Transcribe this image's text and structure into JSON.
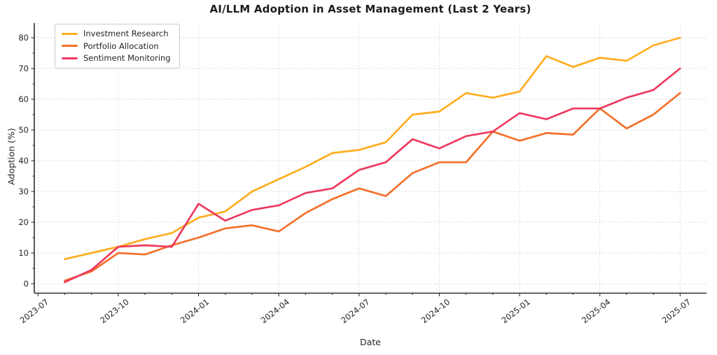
{
  "chart": {
    "title": "AI/LLM Adoption in Asset Management (Last 2 Years)",
    "xlabel": "Date",
    "ylabel": "Adoption (%)"
  },
  "chart_data": {
    "type": "line",
    "title": "AI/LLM Adoption in Asset Management (Last 2 Years)",
    "xlabel": "Date",
    "ylabel": "Adoption (%)",
    "ylim": [
      0,
      80
    ],
    "yticks": [
      0,
      10,
      20,
      30,
      40,
      50,
      60,
      70,
      80
    ],
    "xticks": [
      "2023-07",
      "2023-10",
      "2024-01",
      "2024-04",
      "2024-07",
      "2024-10",
      "2025-01",
      "2025-04",
      "2025-07"
    ],
    "grid": true,
    "legend_position": "upper left",
    "x": [
      "2023-08",
      "2023-09",
      "2023-10",
      "2023-11",
      "2023-12",
      "2024-01",
      "2024-02",
      "2024-03",
      "2024-04",
      "2024-05",
      "2024-06",
      "2024-07",
      "2024-08",
      "2024-09",
      "2024-10",
      "2024-11",
      "2024-12",
      "2025-01",
      "2025-02",
      "2025-03",
      "2025-04",
      "2025-05",
      "2025-06",
      "2025-07"
    ],
    "series": [
      {
        "name": "Investment Research",
        "color": "#FFAD1F",
        "values": [
          8,
          10,
          12,
          14.5,
          16.5,
          21.5,
          23.5,
          30,
          34,
          38,
          42.5,
          43.5,
          46,
          55,
          56,
          62,
          60.5,
          62.5,
          74,
          70.5,
          73.5,
          72.5,
          77.5,
          80
        ]
      },
      {
        "name": "Portfolio Allocation",
        "color": "#F4702A",
        "values": [
          1,
          4,
          10,
          9.5,
          12.5,
          15,
          18,
          19,
          17,
          23,
          27.5,
          31,
          28.5,
          36,
          39.5,
          39.5,
          49.5,
          46.5,
          49,
          48.5,
          57,
          50.5,
          55,
          62
        ]
      },
      {
        "name": "Sentiment Monitoring",
        "color": "#EE3A5F",
        "values": [
          0.5,
          4.5,
          12,
          12.5,
          12,
          26,
          20.5,
          24,
          25.5,
          29.5,
          31,
          37,
          39.5,
          47,
          44,
          48,
          49.5,
          55.5,
          53.5,
          57,
          57,
          60.5,
          63,
          70
        ]
      }
    ]
  }
}
